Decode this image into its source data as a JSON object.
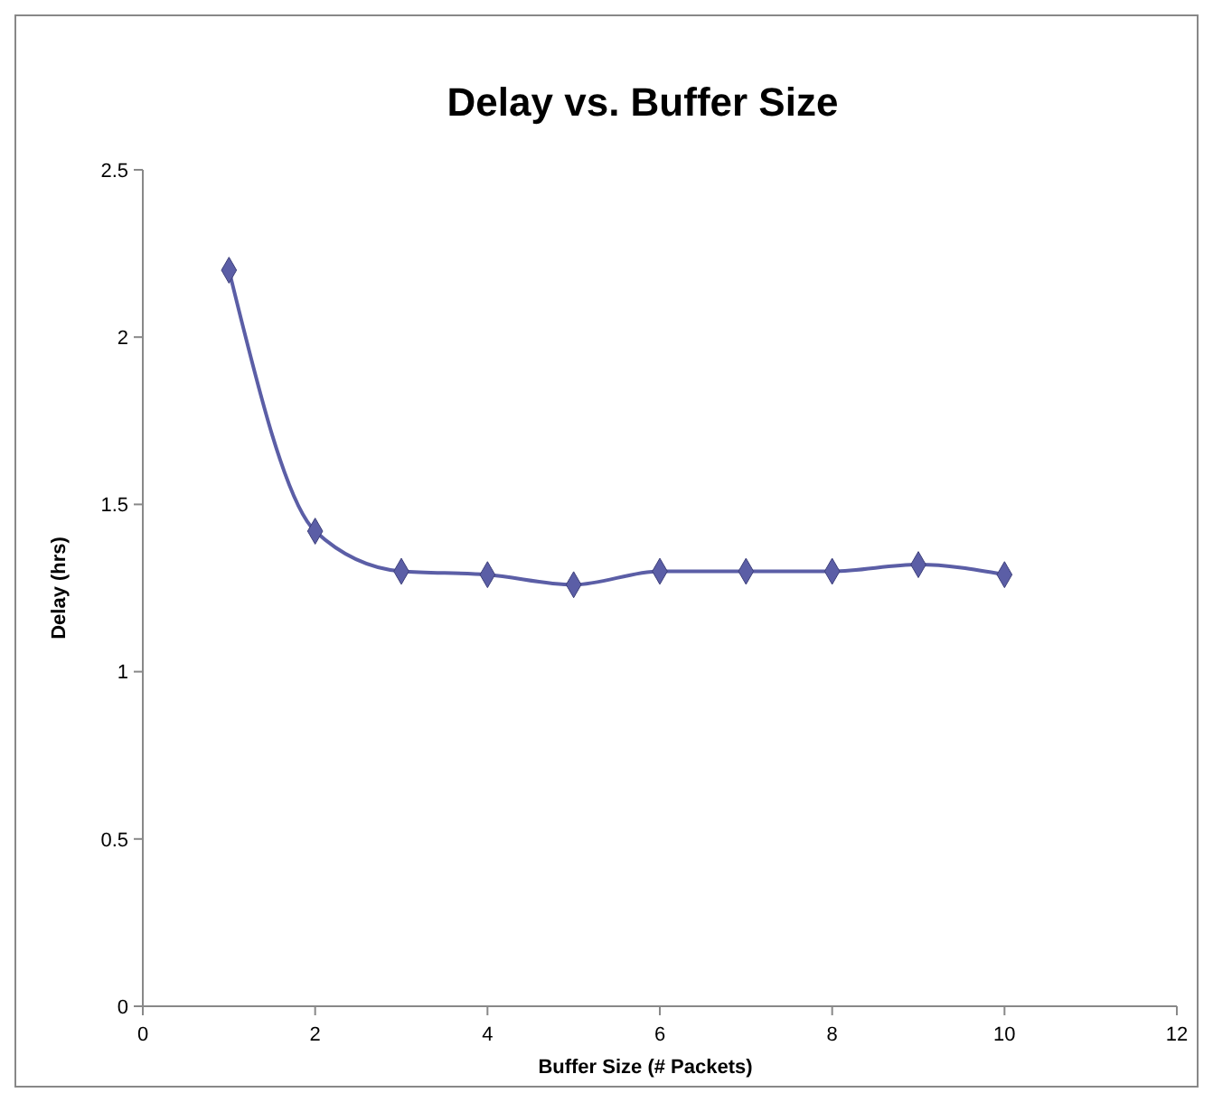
{
  "chart_data": {
    "type": "line",
    "title": "Delay vs. Buffer Size",
    "xlabel": "Buffer Size (# Packets)",
    "ylabel": "Delay (hrs)",
    "x": [
      1,
      2,
      3,
      4,
      5,
      6,
      7,
      8,
      9,
      10
    ],
    "series": [
      {
        "color": "#5b5ea6",
        "values": [
          2.2,
          1.42,
          1.3,
          1.29,
          1.26,
          1.3,
          1.3,
          1.3,
          1.32,
          1.29
        ]
      }
    ],
    "xlim": [
      0,
      12
    ],
    "xticks": [
      0,
      2,
      4,
      6,
      8,
      10,
      12
    ],
    "ylim": [
      0,
      2.5
    ],
    "yticks": [
      0,
      0.5,
      1,
      1.5,
      2,
      2.5
    ],
    "grid": false,
    "marker": "diamond",
    "line_style": "solid"
  }
}
